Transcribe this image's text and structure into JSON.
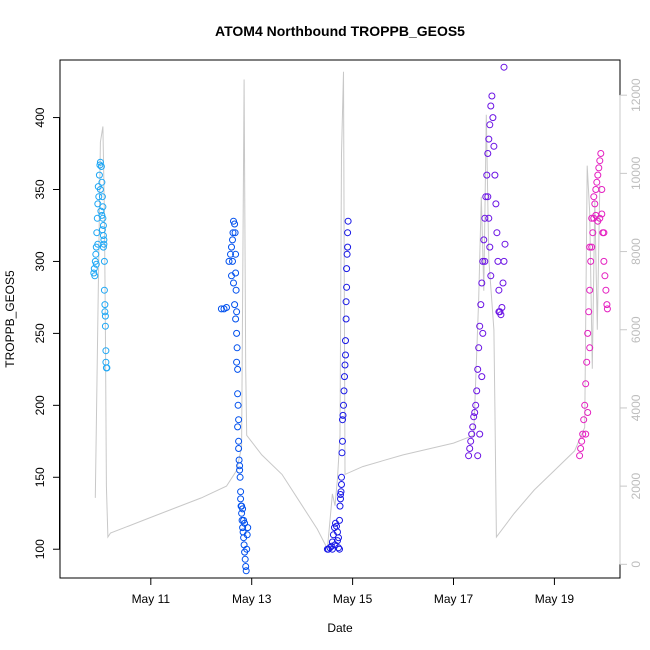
{
  "chart_data": {
    "type": "scatter",
    "title": "ATOM4 Northbound TROPPB_GEOS5",
    "xlabel": "Date",
    "ylabel": "TROPPB_GEOS5",
    "x_ticks": [
      "May 11",
      "May 13",
      "May 15",
      "May 17",
      "May 19"
    ],
    "x_tick_values": [
      11,
      13,
      15,
      17,
      19
    ],
    "xlim": [
      9.2,
      20.3
    ],
    "ylim": [
      80,
      440
    ],
    "y_ticks": [
      100,
      150,
      200,
      250,
      300,
      350,
      400
    ],
    "secondary_axis": {
      "label": "",
      "ticks": [
        0,
        2000,
        4000,
        6000,
        8000,
        10000,
        12000
      ],
      "ylim": [
        -350,
        12900
      ],
      "color": "#c8c8c8"
    },
    "altitude_profile": [
      [
        9.9,
        1700
      ],
      [
        10.0,
        10800
      ],
      [
        10.05,
        11200
      ],
      [
        10.08,
        9000
      ],
      [
        10.1,
        6000
      ],
      [
        10.12,
        2000
      ],
      [
        10.15,
        700
      ],
      [
        10.2,
        800
      ],
      [
        10.5,
        950
      ],
      [
        11.0,
        1200
      ],
      [
        11.5,
        1450
      ],
      [
        12.0,
        1700
      ],
      [
        12.5,
        2000
      ],
      [
        12.7,
        2400
      ],
      [
        12.8,
        3000
      ],
      [
        12.85,
        12400
      ],
      [
        12.88,
        5000
      ],
      [
        12.9,
        3300
      ],
      [
        13.2,
        2800
      ],
      [
        13.6,
        2300
      ],
      [
        14.0,
        1500
      ],
      [
        14.3,
        900
      ],
      [
        14.5,
        400
      ],
      [
        14.6,
        1800
      ],
      [
        14.65,
        1500
      ],
      [
        14.7,
        2200
      ],
      [
        14.75,
        3300
      ],
      [
        14.78,
        10500
      ],
      [
        14.82,
        12600
      ],
      [
        14.85,
        2300
      ],
      [
        15.2,
        2500
      ],
      [
        15.6,
        2650
      ],
      [
        16.0,
        2800
      ],
      [
        16.5,
        2950
      ],
      [
        17.0,
        3100
      ],
      [
        17.4,
        3300
      ],
      [
        17.5,
        6800
      ],
      [
        17.55,
        9400
      ],
      [
        17.6,
        7000
      ],
      [
        17.65,
        11500
      ],
      [
        17.7,
        7800
      ],
      [
        17.8,
        6000
      ],
      [
        17.82,
        4000
      ],
      [
        17.85,
        700
      ],
      [
        18.2,
        1300
      ],
      [
        18.6,
        1900
      ],
      [
        19.0,
        2400
      ],
      [
        19.4,
        2900
      ],
      [
        19.6,
        3500
      ],
      [
        19.65,
        10200
      ],
      [
        19.7,
        9000
      ],
      [
        19.75,
        5000
      ],
      [
        19.8,
        9300
      ],
      [
        19.85,
        6000
      ],
      [
        19.9,
        9700
      ]
    ],
    "legend": [],
    "series": [
      {
        "color": "#1ea7f5",
        "points": [
          [
            9.87,
            292
          ],
          [
            9.88,
            295
          ],
          [
            9.9,
            300
          ],
          [
            9.92,
            310
          ],
          [
            9.93,
            320
          ],
          [
            9.95,
            340
          ],
          [
            9.96,
            352
          ],
          [
            9.98,
            360
          ],
          [
            9.99,
            367
          ],
          [
            10.0,
            369
          ],
          [
            10.02,
            366
          ],
          [
            10.03,
            355
          ],
          [
            10.04,
            345
          ],
          [
            10.05,
            338
          ],
          [
            10.05,
            330
          ],
          [
            10.06,
            325
          ],
          [
            10.06,
            318
          ],
          [
            10.07,
            312
          ],
          [
            10.08,
            300
          ],
          [
            10.08,
            280
          ],
          [
            10.09,
            270
          ],
          [
            10.09,
            265
          ],
          [
            10.1,
            262
          ],
          [
            10.1,
            255
          ],
          [
            10.11,
            238
          ],
          [
            10.11,
            230
          ],
          [
            10.12,
            226
          ],
          [
            10.13,
            226
          ],
          [
            9.89,
            290
          ],
          [
            9.91,
            305
          ],
          [
            9.94,
            330
          ],
          [
            9.97,
            345
          ],
          [
            10.01,
            335
          ],
          [
            10.04,
            322
          ],
          [
            10.07,
            315
          ],
          [
            9.92,
            298
          ],
          [
            9.95,
            312
          ],
          [
            10.0,
            350
          ],
          [
            10.03,
            332
          ],
          [
            10.06,
            310
          ]
        ]
      },
      {
        "color": "#0050ee",
        "points": [
          [
            12.4,
            267
          ],
          [
            12.45,
            267
          ],
          [
            12.5,
            268
          ],
          [
            12.55,
            300
          ],
          [
            12.58,
            305
          ],
          [
            12.6,
            310
          ],
          [
            12.62,
            315
          ],
          [
            12.63,
            320
          ],
          [
            12.64,
            328
          ],
          [
            12.66,
            326
          ],
          [
            12.67,
            320
          ],
          [
            12.68,
            305
          ],
          [
            12.68,
            292
          ],
          [
            12.69,
            280
          ],
          [
            12.7,
            265
          ],
          [
            12.7,
            250
          ],
          [
            12.71,
            240
          ],
          [
            12.72,
            225
          ],
          [
            12.72,
            208
          ],
          [
            12.73,
            200
          ],
          [
            12.74,
            190
          ],
          [
            12.74,
            175
          ],
          [
            12.75,
            162
          ],
          [
            12.76,
            158
          ],
          [
            12.77,
            150
          ],
          [
            12.78,
            140
          ],
          [
            12.79,
            130
          ],
          [
            12.8,
            125
          ],
          [
            12.81,
            120
          ],
          [
            12.82,
            115
          ],
          [
            12.83,
            112
          ],
          [
            12.84,
            108
          ],
          [
            12.85,
            103
          ],
          [
            12.86,
            98
          ],
          [
            12.87,
            93
          ],
          [
            12.88,
            88
          ],
          [
            12.89,
            85
          ],
          [
            12.9,
            100
          ],
          [
            12.91,
            110
          ],
          [
            12.92,
            115
          ],
          [
            12.6,
            290
          ],
          [
            12.62,
            300
          ],
          [
            12.64,
            285
          ],
          [
            12.66,
            270
          ],
          [
            12.68,
            260
          ],
          [
            12.7,
            230
          ],
          [
            12.72,
            185
          ],
          [
            12.74,
            170
          ],
          [
            12.76,
            155
          ],
          [
            12.78,
            135
          ],
          [
            12.8,
            130
          ],
          [
            12.82,
            128
          ],
          [
            12.84,
            120
          ],
          [
            12.86,
            118
          ]
        ]
      },
      {
        "color": "#1818e6",
        "points": [
          [
            14.5,
            100
          ],
          [
            14.52,
            100
          ],
          [
            14.55,
            101
          ],
          [
            14.58,
            102
          ],
          [
            14.6,
            105
          ],
          [
            14.62,
            110
          ],
          [
            14.64,
            115
          ],
          [
            14.66,
            118
          ],
          [
            14.68,
            116
          ],
          [
            14.7,
            112
          ],
          [
            14.72,
            108
          ],
          [
            14.74,
            120
          ],
          [
            14.75,
            130
          ],
          [
            14.76,
            135
          ],
          [
            14.77,
            140
          ],
          [
            14.78,
            150
          ],
          [
            14.79,
            167
          ],
          [
            14.8,
            175
          ],
          [
            14.8,
            190
          ],
          [
            14.81,
            193
          ],
          [
            14.82,
            200
          ],
          [
            14.83,
            210
          ],
          [
            14.84,
            220
          ],
          [
            14.85,
            228
          ],
          [
            14.86,
            235
          ],
          [
            14.86,
            245
          ],
          [
            14.87,
            260
          ],
          [
            14.87,
            272
          ],
          [
            14.88,
            282
          ],
          [
            14.88,
            295
          ],
          [
            14.89,
            305
          ],
          [
            14.9,
            310
          ],
          [
            14.9,
            320
          ],
          [
            14.91,
            328
          ],
          [
            14.6,
            100
          ],
          [
            14.65,
            103
          ],
          [
            14.7,
            106
          ],
          [
            14.72,
            101
          ],
          [
            14.74,
            100
          ],
          [
            14.76,
            138
          ],
          [
            14.78,
            145
          ]
        ]
      },
      {
        "color": "#6a12e4",
        "points": [
          [
            17.3,
            165
          ],
          [
            17.32,
            170
          ],
          [
            17.34,
            175
          ],
          [
            17.36,
            180
          ],
          [
            17.38,
            185
          ],
          [
            17.4,
            192
          ],
          [
            17.42,
            195
          ],
          [
            17.44,
            200
          ],
          [
            17.46,
            210
          ],
          [
            17.48,
            225
          ],
          [
            17.5,
            240
          ],
          [
            17.52,
            255
          ],
          [
            17.54,
            270
          ],
          [
            17.56,
            285
          ],
          [
            17.58,
            300
          ],
          [
            17.6,
            315
          ],
          [
            17.62,
            330
          ],
          [
            17.64,
            345
          ],
          [
            17.66,
            360
          ],
          [
            17.68,
            375
          ],
          [
            17.7,
            385
          ],
          [
            17.72,
            395
          ],
          [
            17.74,
            408
          ],
          [
            17.76,
            415
          ],
          [
            17.78,
            400
          ],
          [
            17.8,
            380
          ],
          [
            17.82,
            360
          ],
          [
            17.84,
            340
          ],
          [
            17.86,
            320
          ],
          [
            17.88,
            300
          ],
          [
            17.9,
            280
          ],
          [
            17.92,
            265
          ],
          [
            17.94,
            263
          ],
          [
            17.96,
            268
          ],
          [
            17.98,
            285
          ],
          [
            18.0,
            300
          ],
          [
            18.02,
            312
          ],
          [
            18.0,
            435
          ],
          [
            17.68,
            345
          ],
          [
            17.7,
            330
          ],
          [
            17.72,
            310
          ],
          [
            17.74,
            290
          ],
          [
            17.62,
            300
          ],
          [
            17.58,
            250
          ],
          [
            17.56,
            220
          ],
          [
            17.52,
            180
          ],
          [
            17.48,
            165
          ],
          [
            17.9,
            265
          ]
        ]
      },
      {
        "color": "#e41ec0",
        "points": [
          [
            19.5,
            165
          ],
          [
            19.52,
            170
          ],
          [
            19.54,
            175
          ],
          [
            19.56,
            180
          ],
          [
            19.58,
            190
          ],
          [
            19.6,
            200
          ],
          [
            19.62,
            215
          ],
          [
            19.64,
            230
          ],
          [
            19.66,
            250
          ],
          [
            19.68,
            265
          ],
          [
            19.7,
            280
          ],
          [
            19.72,
            300
          ],
          [
            19.74,
            310
          ],
          [
            19.76,
            320
          ],
          [
            19.78,
            330
          ],
          [
            19.8,
            340
          ],
          [
            19.82,
            350
          ],
          [
            19.84,
            355
          ],
          [
            19.86,
            360
          ],
          [
            19.88,
            365
          ],
          [
            19.9,
            370
          ],
          [
            19.92,
            375
          ],
          [
            19.94,
            350
          ],
          [
            19.96,
            320
          ],
          [
            19.98,
            300
          ],
          [
            20.0,
            290
          ],
          [
            20.02,
            280
          ],
          [
            20.04,
            270
          ],
          [
            20.05,
            267
          ],
          [
            19.7,
            310
          ],
          [
            19.74,
            330
          ],
          [
            19.78,
            345
          ],
          [
            19.82,
            332
          ],
          [
            19.86,
            328
          ],
          [
            19.9,
            330
          ],
          [
            19.94,
            333
          ],
          [
            19.98,
            320
          ],
          [
            19.62,
            180
          ],
          [
            19.66,
            195
          ],
          [
            19.7,
            240
          ]
        ]
      }
    ]
  }
}
